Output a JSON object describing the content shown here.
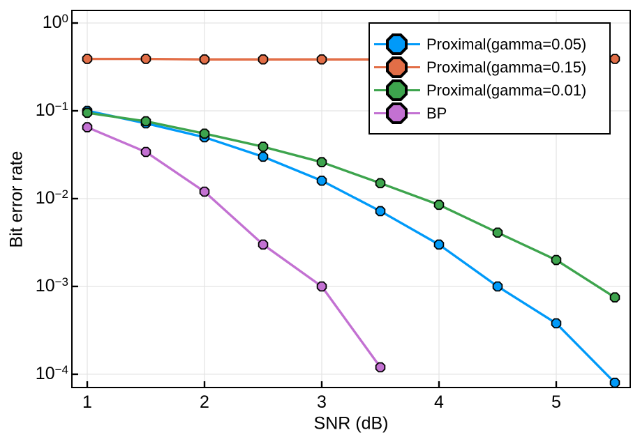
{
  "figure": {
    "xlabel": "SNR (dB)",
    "ylabel": "Bit error rate"
  },
  "chart_data": {
    "type": "line",
    "title": "",
    "xlabel": "SNR (dB)",
    "ylabel": "Bit error rate",
    "yscale": "log",
    "xlim": [
      0.869,
      5.631
    ],
    "ylim": [
      7.06e-05,
      1.39
    ],
    "xticks": [
      1,
      2,
      3,
      4,
      5
    ],
    "ytick_exponents": [
      0,
      -1,
      -2,
      -3,
      -4
    ],
    "grid": true,
    "legend_position": "top-right",
    "marker_shape": "octagon",
    "colors": {
      "grid": "#E3E3E3",
      "frame": "#000000",
      "background": "#FFFFFF"
    },
    "series": [
      {
        "name": "Proximal(gamma=0.05)",
        "color": "#009AF9",
        "x": [
          1,
          1.5,
          2,
          2.5,
          3,
          3.5,
          4,
          4.5,
          5,
          5.5
        ],
        "values": [
          0.1,
          0.072,
          0.05,
          0.03,
          0.016,
          0.0072,
          0.003,
          0.001,
          0.00038,
          8e-05
        ]
      },
      {
        "name": "Proximal(gamma=0.15)",
        "color": "#E26E47",
        "x": [
          1,
          1.5,
          2,
          2.5,
          3,
          3.5,
          4,
          4.5,
          5,
          5.5
        ],
        "values": [
          0.39,
          0.39,
          0.385,
          0.385,
          0.385,
          0.385,
          0.385,
          0.385,
          0.385,
          0.39
        ]
      },
      {
        "name": "Proximal(gamma=0.01)",
        "color": "#3DA44D",
        "x": [
          1,
          1.5,
          2,
          2.5,
          3,
          3.5,
          4,
          4.5,
          5,
          5.5
        ],
        "values": [
          0.095,
          0.076,
          0.055,
          0.039,
          0.026,
          0.015,
          0.0085,
          0.0041,
          0.002,
          0.00075
        ]
      },
      {
        "name": "BP",
        "color": "#C371D2",
        "x": [
          1,
          1.5,
          2,
          2.5,
          3,
          3.5
        ],
        "values": [
          0.065,
          0.034,
          0.012,
          0.003,
          0.001,
          0.00012
        ]
      }
    ]
  }
}
